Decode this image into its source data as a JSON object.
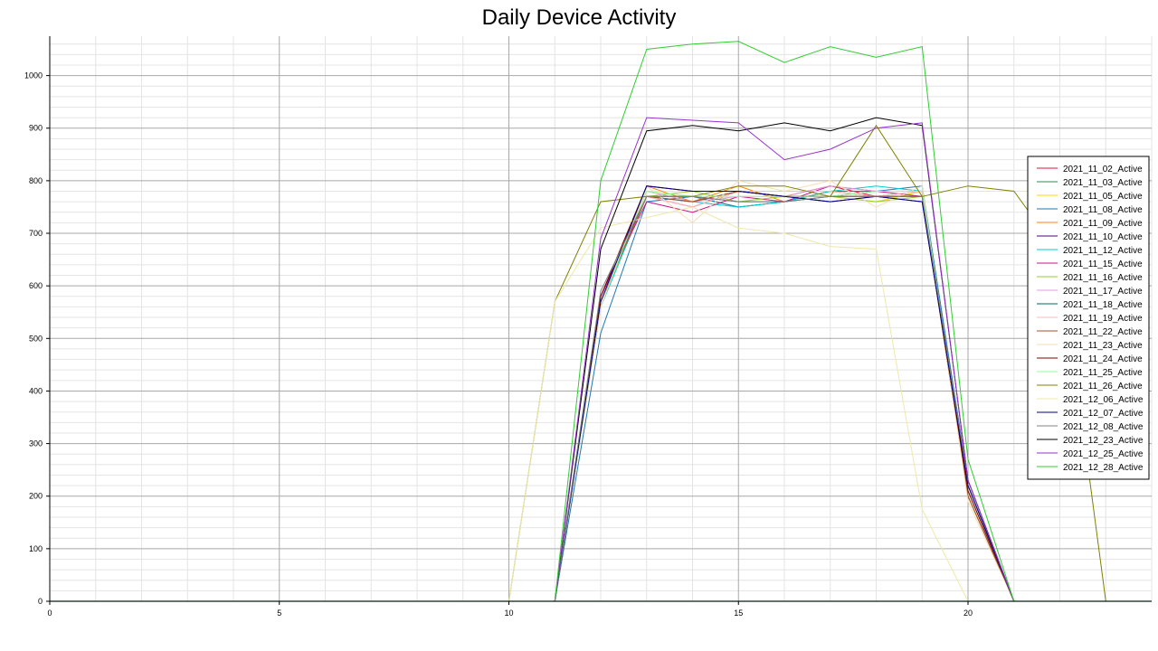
{
  "chart_data": {
    "type": "line",
    "title": "Daily Device Activity",
    "xlabel": "",
    "ylabel": "",
    "xlim": [
      0,
      24
    ],
    "ylim": [
      0,
      1075
    ],
    "x_ticks": [
      0,
      5,
      10,
      15,
      20
    ],
    "y_ticks": [
      0,
      100,
      200,
      300,
      400,
      500,
      600,
      700,
      800,
      900,
      1000
    ],
    "grid": true,
    "legend_position": "right",
    "series": [
      {
        "name": "2021_11_02_Active",
        "color": "#dc143c",
        "x": [
          10,
          11,
          12,
          13,
          14,
          15,
          16,
          17,
          18,
          19,
          20,
          21
        ],
        "y": [
          0,
          0,
          570,
          770,
          750,
          780,
          770,
          790,
          770,
          770,
          210,
          0
        ]
      },
      {
        "name": "2021_11_03_Active",
        "color": "#2e8b57",
        "x": [
          10,
          11,
          12,
          13,
          14,
          15,
          16,
          17,
          18,
          19,
          20,
          21
        ],
        "y": [
          0,
          0,
          570,
          770,
          770,
          750,
          760,
          780,
          770,
          780,
          220,
          0
        ]
      },
      {
        "name": "2021_11_05_Active",
        "color": "#ffd700",
        "x": [
          10,
          11,
          12,
          13,
          14,
          15,
          16,
          17,
          18,
          19,
          20,
          21
        ],
        "y": [
          0,
          0,
          560,
          780,
          770,
          760,
          770,
          770,
          760,
          780,
          210,
          0
        ]
      },
      {
        "name": "2021_11_08_Active",
        "color": "#1f77b4",
        "x": [
          10,
          11,
          12,
          13,
          14,
          15,
          16,
          17,
          18,
          19,
          20,
          21
        ],
        "y": [
          0,
          0,
          510,
          760,
          770,
          750,
          760,
          780,
          780,
          790,
          230,
          0
        ]
      },
      {
        "name": "2021_11_09_Active",
        "color": "#ff7f0e",
        "x": [
          10,
          11,
          12,
          13,
          14,
          15,
          16,
          17,
          18,
          19,
          20,
          21
        ],
        "y": [
          0,
          0,
          560,
          790,
          760,
          790,
          760,
          780,
          770,
          770,
          200,
          0
        ]
      },
      {
        "name": "2021_11_10_Active",
        "color": "#4b0082",
        "x": [
          10,
          11,
          12,
          13,
          14,
          15,
          16,
          17,
          18,
          19,
          20,
          21
        ],
        "y": [
          0,
          0,
          580,
          770,
          760,
          780,
          770,
          760,
          770,
          760,
          220,
          0
        ]
      },
      {
        "name": "2021_11_12_Active",
        "color": "#00ced1",
        "x": [
          10,
          11,
          12,
          13,
          14,
          15,
          16,
          17,
          18,
          19,
          20,
          21
        ],
        "y": [
          0,
          0,
          560,
          770,
          760,
          750,
          760,
          780,
          790,
          780,
          210,
          0
        ]
      },
      {
        "name": "2021_11_15_Active",
        "color": "#c71585",
        "x": [
          10,
          11,
          12,
          13,
          14,
          15,
          16,
          17,
          18,
          19,
          20,
          21
        ],
        "y": [
          0,
          0,
          580,
          760,
          740,
          770,
          760,
          790,
          780,
          770,
          220,
          0
        ]
      },
      {
        "name": "2021_11_16_Active",
        "color": "#9acd32",
        "x": [
          10,
          11,
          12,
          13,
          14,
          15,
          16,
          17,
          18,
          19,
          20,
          21
        ],
        "y": [
          0,
          0,
          570,
          770,
          780,
          760,
          770,
          770,
          760,
          770,
          200,
          0
        ]
      },
      {
        "name": "2021_11_17_Active",
        "color": "#dda0dd",
        "x": [
          10,
          11,
          12,
          13,
          14,
          15,
          16,
          17,
          18,
          19,
          20,
          21
        ],
        "y": [
          0,
          0,
          570,
          780,
          760,
          770,
          770,
          790,
          780,
          780,
          210,
          0
        ]
      },
      {
        "name": "2021_11_18_Active",
        "color": "#006666",
        "x": [
          10,
          11,
          12,
          13,
          14,
          15,
          16,
          17,
          18,
          19,
          20,
          21
        ],
        "y": [
          0,
          0,
          570,
          770,
          770,
          760,
          760,
          770,
          780,
          780,
          220,
          0
        ]
      },
      {
        "name": "2021_11_19_Active",
        "color": "#ffb6c1",
        "x": [
          10,
          11,
          12,
          13,
          14,
          15,
          16,
          17,
          18,
          19,
          20,
          21
        ],
        "y": [
          0,
          0,
          570,
          770,
          750,
          780,
          780,
          780,
          770,
          780,
          210,
          0
        ]
      },
      {
        "name": "2021_11_22_Active",
        "color": "#a0522d",
        "x": [
          10,
          11,
          12,
          13,
          14,
          15,
          16,
          17,
          18,
          19,
          20,
          21
        ],
        "y": [
          0,
          0,
          570,
          770,
          760,
          780,
          770,
          770,
          770,
          770,
          200,
          0
        ]
      },
      {
        "name": "2021_11_23_Active",
        "color": "#f5deb3",
        "x": [
          10,
          11,
          12,
          13,
          14,
          15,
          16,
          17,
          18,
          19,
          20,
          21
        ],
        "y": [
          0,
          0,
          560,
          790,
          720,
          800,
          780,
          800,
          750,
          790,
          190,
          0
        ]
      },
      {
        "name": "2021_11_24_Active",
        "color": "#800000",
        "x": [
          10,
          11,
          12,
          13,
          14,
          15,
          16,
          17,
          18,
          19,
          20,
          21
        ],
        "y": [
          0,
          0,
          580,
          790,
          780,
          780,
          770,
          770,
          770,
          770,
          210,
          0
        ]
      },
      {
        "name": "2021_11_25_Active",
        "color": "#98fb98",
        "x": [
          10,
          11,
          12,
          13,
          14,
          15,
          16,
          17,
          18,
          19,
          20,
          21
        ],
        "y": [
          0,
          0,
          570,
          780,
          770,
          770,
          770,
          770,
          780,
          780,
          220,
          0
        ]
      },
      {
        "name": "2021_11_26_Active",
        "color": "#808000",
        "x": [
          10,
          11,
          12,
          13,
          14,
          15,
          16,
          17,
          18,
          19,
          20,
          21,
          22,
          23
        ],
        "y": [
          0,
          570,
          760,
          770,
          770,
          790,
          790,
          770,
          905,
          770,
          790,
          780,
          660,
          0
        ]
      },
      {
        "name": "2021_12_06_Active",
        "color": "#eee8aa",
        "x": [
          10,
          11,
          12,
          13,
          14,
          15,
          16,
          17,
          18,
          19,
          20,
          21
        ],
        "y": [
          0,
          570,
          710,
          730,
          750,
          710,
          700,
          675,
          670,
          175,
          0,
          0
        ]
      },
      {
        "name": "2021_12_07_Active",
        "color": "#000080",
        "x": [
          10,
          11,
          12,
          13,
          14,
          15,
          16,
          17,
          18,
          19,
          20,
          21
        ],
        "y": [
          0,
          0,
          570,
          790,
          780,
          780,
          770,
          760,
          770,
          760,
          220,
          0
        ]
      },
      {
        "name": "2021_12_08_Active",
        "color": "#808080",
        "x": [
          10,
          11,
          12,
          13,
          14,
          15,
          16,
          17,
          18,
          19,
          20,
          21
        ],
        "y": [
          0,
          0,
          590,
          770,
          770,
          760,
          760,
          770,
          770,
          770,
          230,
          0
        ]
      },
      {
        "name": "2021_12_23_Active",
        "color": "#000000",
        "x": [
          10,
          11,
          12,
          13,
          14,
          15,
          16,
          17,
          18,
          19,
          20,
          21
        ],
        "y": [
          0,
          0,
          670,
          895,
          905,
          895,
          910,
          895,
          920,
          905,
          230,
          0
        ]
      },
      {
        "name": "2021_12_25_Active",
        "color": "#9932cc",
        "x": [
          10,
          11,
          12,
          13,
          14,
          15,
          16,
          17,
          18,
          19,
          20,
          21
        ],
        "y": [
          0,
          0,
          690,
          920,
          915,
          910,
          840,
          860,
          900,
          910,
          230,
          0
        ]
      },
      {
        "name": "2021_12_28_Active",
        "color": "#32cd32",
        "x": [
          10,
          11,
          12,
          13,
          14,
          15,
          16,
          17,
          18,
          19,
          20,
          21
        ],
        "y": [
          0,
          0,
          800,
          1050,
          1060,
          1065,
          1025,
          1055,
          1035,
          1055,
          270,
          0
        ]
      }
    ]
  }
}
